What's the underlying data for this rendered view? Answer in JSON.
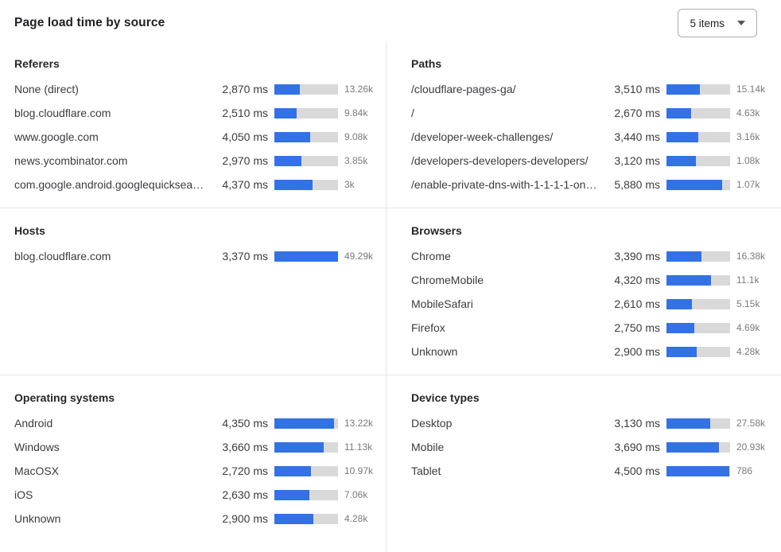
{
  "header": {
    "title": "Page load time by source",
    "items_dropdown": {
      "value": "5 items"
    }
  },
  "colors": {
    "bar_fill": "#3272e4",
    "bar_track": "#d9d9d9"
  },
  "chart_data": [
    {
      "type": "bar",
      "orientation": "horizontal",
      "title": "Referers",
      "unit": "ms",
      "categories": [
        "None (direct)",
        "blog.cloudflare.com",
        "www.google.com",
        "news.ycombinator.com",
        "com.google.android.googlequicksearc..."
      ],
      "values_ms": [
        2870,
        2510,
        4050,
        2970,
        4370
      ],
      "value_labels": [
        "2,870 ms",
        "2,510 ms",
        "4,050 ms",
        "2,970 ms",
        "4,370 ms"
      ],
      "count_labels": [
        "13.26k",
        "9.84k",
        "9.08k",
        "3.85k",
        "3k"
      ],
      "bar_pct": [
        40,
        35,
        56,
        42,
        60
      ]
    },
    {
      "type": "bar",
      "orientation": "horizontal",
      "title": "Paths",
      "unit": "ms",
      "categories": [
        "/cloudflare-pages-ga/",
        "/",
        "/developer-week-challenges/",
        "/developers-developers-developers/",
        "/enable-private-dns-with-1-1-1-1-on-..."
      ],
      "values_ms": [
        3510,
        2670,
        3440,
        3120,
        5880
      ],
      "value_labels": [
        "3,510 ms",
        "2,670 ms",
        "3,440 ms",
        "3,120 ms",
        "5,880 ms"
      ],
      "count_labels": [
        "15.14k",
        "4.63k",
        "3.16k",
        "1.08k",
        "1.07k"
      ],
      "bar_pct": [
        53,
        39,
        50,
        46,
        87
      ]
    },
    {
      "type": "bar",
      "orientation": "horizontal",
      "title": "Hosts",
      "unit": "ms",
      "categories": [
        "blog.cloudflare.com"
      ],
      "values_ms": [
        3370
      ],
      "value_labels": [
        "3,370 ms"
      ],
      "count_labels": [
        "49.29k"
      ],
      "bar_pct": [
        100
      ]
    },
    {
      "type": "bar",
      "orientation": "horizontal",
      "title": "Browsers",
      "unit": "ms",
      "categories": [
        "Chrome",
        "ChromeMobile",
        "MobileSafari",
        "Firefox",
        "Unknown"
      ],
      "values_ms": [
        3390,
        4320,
        2610,
        2750,
        2900
      ],
      "value_labels": [
        "3,390 ms",
        "4,320 ms",
        "2,610 ms",
        "2,750 ms",
        "2,900 ms"
      ],
      "count_labels": [
        "16.38k",
        "11.1k",
        "5.15k",
        "4.69k",
        "4.28k"
      ],
      "bar_pct": [
        55,
        70,
        40,
        44,
        47
      ]
    },
    {
      "type": "bar",
      "orientation": "horizontal",
      "title": "Operating systems",
      "unit": "ms",
      "categories": [
        "Android",
        "Windows",
        "MacOSX",
        "iOS",
        "Unknown"
      ],
      "values_ms": [
        4350,
        3660,
        2720,
        2630,
        2900
      ],
      "value_labels": [
        "4,350 ms",
        "3,660 ms",
        "2,720 ms",
        "2,630 ms",
        "2,900 ms"
      ],
      "count_labels": [
        "13.22k",
        "11.13k",
        "10.97k",
        "7.06k",
        "4.28k"
      ],
      "bar_pct": [
        94,
        78,
        58,
        55,
        61
      ]
    },
    {
      "type": "bar",
      "orientation": "horizontal",
      "title": "Device types",
      "unit": "ms",
      "categories": [
        "Desktop",
        "Mobile",
        "Tablet"
      ],
      "values_ms": [
        3130,
        3690,
        4500
      ],
      "value_labels": [
        "3,130 ms",
        "3,690 ms",
        "4,500 ms"
      ],
      "count_labels": [
        "27.58k",
        "20.93k",
        "786"
      ],
      "bar_pct": [
        69,
        82,
        99
      ]
    }
  ]
}
